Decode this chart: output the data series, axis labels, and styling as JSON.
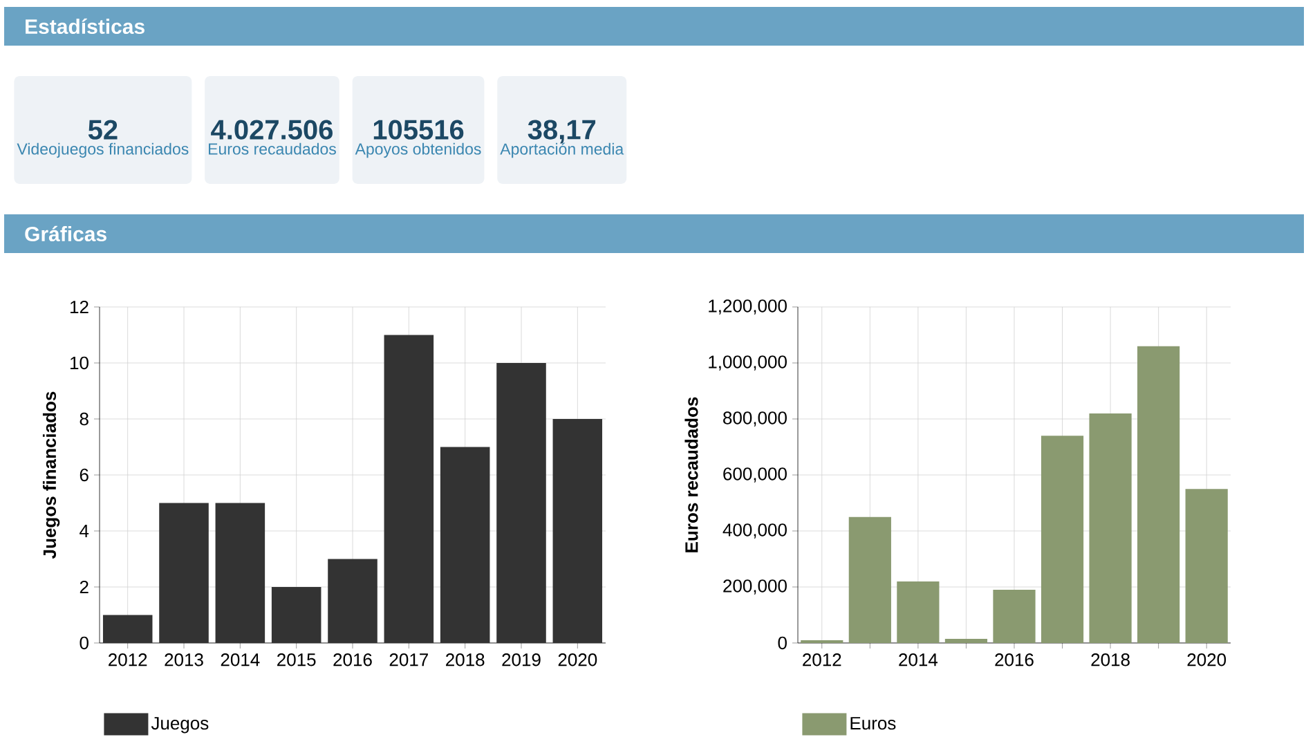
{
  "chart_data": [
    {
      "type": "other",
      "title": "Estadísticas",
      "categories": [
        "Videojuegos financiados",
        "Euros recaudados",
        "Apoyos obtenidos",
        "Aportación media"
      ],
      "value_labels": [
        "52",
        "4.027.506",
        "105516",
        "38,17"
      ],
      "annotations": [
        "Gráficas"
      ]
    },
    {
      "type": "bar",
      "ylabel": "Juegos financiados",
      "categories": [
        "2012",
        "2013",
        "2014",
        "2015",
        "2016",
        "2017",
        "2018",
        "2019",
        "2020"
      ],
      "series": [
        {
          "name": "Juegos",
          "color": "#333333",
          "values": [
            1,
            5,
            5,
            2,
            3,
            11,
            7,
            10,
            8
          ]
        }
      ],
      "ylim": [
        0,
        12
      ],
      "yticks": [
        0,
        2,
        4,
        6,
        8,
        10,
        12
      ],
      "grid": true,
      "legend": "bottom"
    },
    {
      "type": "bar",
      "ylabel": "Euros recaudados",
      "categories": [
        "2012",
        null,
        "2014",
        null,
        "2016",
        null,
        "2018",
        null,
        "2020"
      ],
      "series": [
        {
          "name": "Euros",
          "color": "#8a9a70",
          "values": [
            10000,
            450000,
            220000,
            15000,
            190000,
            740000,
            820000,
            1060000,
            550000
          ]
        }
      ],
      "ylim": [
        0,
        1200000
      ],
      "yticks": [
        0,
        {
          "value": 200000,
          "label": "200,000"
        },
        {
          "value": 400000,
          "label": "400,000"
        },
        {
          "value": 600000,
          "label": "600,000"
        },
        {
          "value": 800000,
          "label": "800,000"
        },
        {
          "value": 1000000,
          "label": "1,000,000"
        },
        {
          "value": 1200000,
          "label": "1,200,000"
        }
      ],
      "grid": true,
      "legend": "bottom"
    }
  ]
}
